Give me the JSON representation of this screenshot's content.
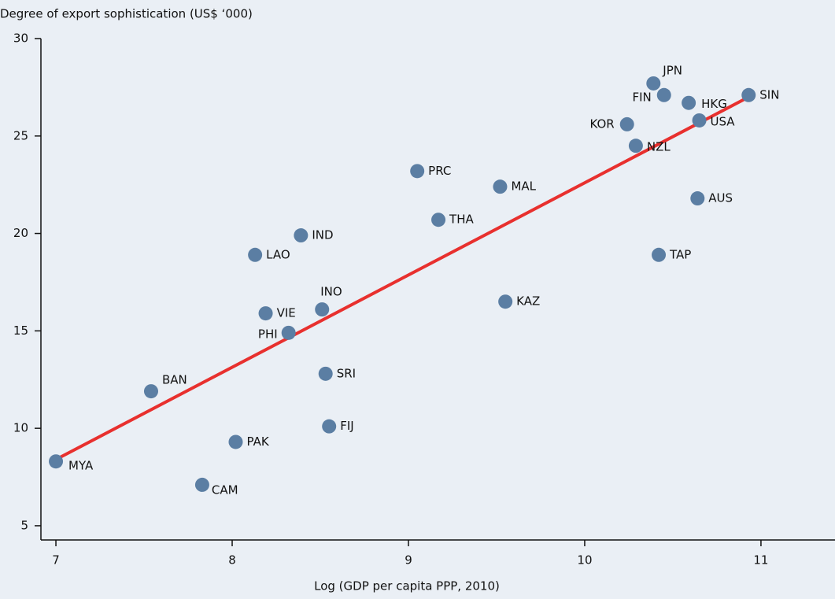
{
  "chart_data": {
    "type": "scatter",
    "y_label": "Degree of export sophistication (US$ ‘000)",
    "x_label": "Log (GDP per capita PPP, 2010)",
    "labels": [
      "MYA",
      "CAM",
      "PAK",
      "BAN",
      "PHI",
      "VIE",
      "LAO",
      "IND",
      "INO",
      "SRI",
      "FIJ",
      "PRC",
      "THA",
      "MAL",
      "KAZ",
      "KOR",
      "NZL",
      "JPN",
      "FIN",
      "HKG",
      "USA",
      "AUS",
      "TAP",
      "SIN"
    ],
    "x": [
      7.0,
      7.83,
      8.02,
      7.54,
      8.32,
      8.19,
      8.13,
      8.39,
      8.51,
      8.53,
      8.55,
      9.05,
      9.17,
      9.52,
      9.55,
      10.24,
      10.29,
      10.39,
      10.45,
      10.59,
      10.65,
      10.64,
      10.42,
      10.93
    ],
    "y": [
      8.3,
      7.1,
      9.3,
      11.9,
      14.9,
      15.9,
      18.9,
      19.9,
      16.1,
      12.8,
      10.1,
      23.2,
      20.7,
      22.4,
      16.5,
      25.6,
      24.5,
      27.7,
      27.1,
      26.7,
      25.8,
      21.8,
      18.9,
      27.1
    ],
    "color": "#5b7ea3",
    "trendline": {
      "x": [
        7.0,
        10.93
      ],
      "y": [
        8.4,
        27.0
      ],
      "color": "#e8302e"
    },
    "xlim": [
      6.915,
      11.42
    ],
    "ylim": [
      4.27,
      30
    ],
    "xticks": [
      7,
      8,
      9,
      10,
      11
    ],
    "yticks": [
      5,
      10,
      15,
      20,
      25,
      30
    ]
  }
}
